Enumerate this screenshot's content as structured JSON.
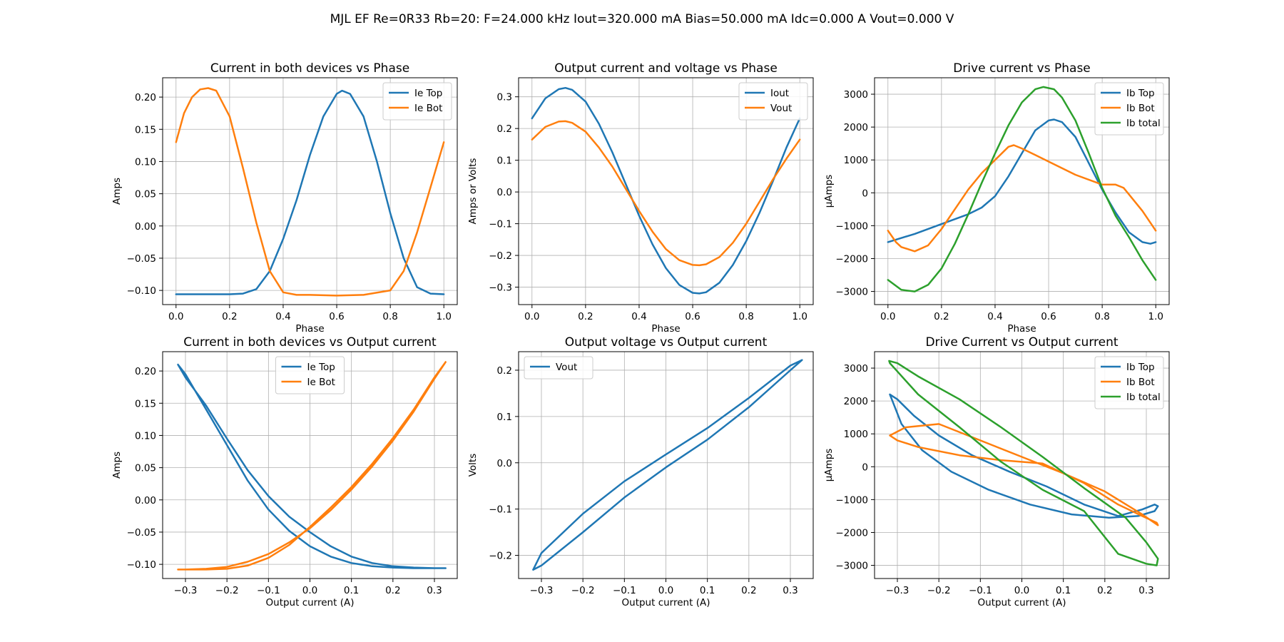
{
  "figure": {
    "suptitle": "MJL EF Re=0R33 Rb=20: F=24.000 kHz Iout=320.000 mA Bias=50.000 mA Idc=0.000 A Vout=0.000 V"
  },
  "colors": {
    "c0": "#1f77b4",
    "c1": "#ff7f0e",
    "c2": "#2ca02c",
    "grid": "#b0b0b0"
  },
  "chart_data": [
    {
      "type": "line",
      "title": "Current in both devices vs Phase",
      "xlabel": "Phase",
      "ylabel": "Amps",
      "xlim": [
        -0.05,
        1.05
      ],
      "ylim": [
        -0.122,
        0.23
      ],
      "xticks": [
        0.0,
        0.2,
        0.4,
        0.6,
        0.8,
        1.0
      ],
      "xticklabels": [
        "0.0",
        "0.2",
        "0.4",
        "0.6",
        "0.8",
        "1.0"
      ],
      "yticks": [
        -0.1,
        -0.05,
        0.0,
        0.05,
        0.1,
        0.15,
        0.2
      ],
      "yticklabels": [
        "−0.10",
        "−0.05",
        "0.00",
        "0.05",
        "0.10",
        "0.15",
        "0.20"
      ],
      "grid": true,
      "legend": "upper right",
      "series": [
        {
          "name": "Ie Top",
          "color": "#1f77b4",
          "x": [
            0.0,
            0.1,
            0.2,
            0.25,
            0.3,
            0.35,
            0.4,
            0.45,
            0.5,
            0.55,
            0.6,
            0.62,
            0.65,
            0.7,
            0.75,
            0.8,
            0.85,
            0.9,
            0.95,
            1.0
          ],
          "y": [
            -0.106,
            -0.106,
            -0.106,
            -0.105,
            -0.098,
            -0.07,
            -0.02,
            0.04,
            0.11,
            0.17,
            0.205,
            0.21,
            0.205,
            0.17,
            0.1,
            0.02,
            -0.05,
            -0.095,
            -0.105,
            -0.106
          ]
        },
        {
          "name": "Ie Bot",
          "color": "#ff7f0e",
          "x": [
            0.0,
            0.03,
            0.06,
            0.09,
            0.12,
            0.15,
            0.2,
            0.25,
            0.3,
            0.35,
            0.4,
            0.45,
            0.5,
            0.6,
            0.7,
            0.8,
            0.85,
            0.9,
            0.95,
            1.0
          ],
          "y": [
            0.13,
            0.175,
            0.2,
            0.212,
            0.214,
            0.21,
            0.17,
            0.09,
            0.005,
            -0.07,
            -0.103,
            -0.107,
            -0.107,
            -0.108,
            -0.107,
            -0.1,
            -0.07,
            -0.01,
            0.06,
            0.13
          ]
        }
      ]
    },
    {
      "type": "line",
      "title": "Output current and voltage vs Phase",
      "xlabel": "Phase",
      "ylabel": "Amps or Volts",
      "xlim": [
        -0.05,
        1.05
      ],
      "ylim": [
        -0.355,
        0.36
      ],
      "xticks": [
        0.0,
        0.2,
        0.4,
        0.6,
        0.8,
        1.0
      ],
      "xticklabels": [
        "0.0",
        "0.2",
        "0.4",
        "0.6",
        "0.8",
        "1.0"
      ],
      "yticks": [
        -0.3,
        -0.2,
        -0.1,
        0.0,
        0.1,
        0.2,
        0.3
      ],
      "yticklabels": [
        "−0.3",
        "−0.2",
        "−0.1",
        "0.0",
        "0.1",
        "0.2",
        "0.3"
      ],
      "grid": true,
      "legend": "upper right",
      "series": [
        {
          "name": "Iout",
          "color": "#1f77b4",
          "x": [
            0.0,
            0.05,
            0.1,
            0.125,
            0.15,
            0.2,
            0.25,
            0.3,
            0.35,
            0.4,
            0.45,
            0.5,
            0.55,
            0.6,
            0.625,
            0.65,
            0.7,
            0.75,
            0.8,
            0.85,
            0.9,
            0.95,
            1.0
          ],
          "y": [
            0.232,
            0.295,
            0.324,
            0.328,
            0.322,
            0.285,
            0.215,
            0.125,
            0.025,
            -0.075,
            -0.165,
            -0.24,
            -0.293,
            -0.318,
            -0.32,
            -0.316,
            -0.286,
            -0.23,
            -0.155,
            -0.065,
            0.035,
            0.14,
            0.232
          ]
        },
        {
          "name": "Vout",
          "color": "#ff7f0e",
          "x": [
            0.0,
            0.05,
            0.1,
            0.125,
            0.15,
            0.2,
            0.25,
            0.3,
            0.35,
            0.4,
            0.45,
            0.5,
            0.55,
            0.6,
            0.625,
            0.65,
            0.7,
            0.75,
            0.8,
            0.85,
            0.9,
            0.95,
            1.0
          ],
          "y": [
            0.165,
            0.205,
            0.222,
            0.223,
            0.218,
            0.19,
            0.14,
            0.08,
            0.01,
            -0.06,
            -0.125,
            -0.18,
            -0.215,
            -0.23,
            -0.231,
            -0.228,
            -0.205,
            -0.16,
            -0.1,
            -0.03,
            0.04,
            0.105,
            0.165
          ]
        }
      ]
    },
    {
      "type": "line",
      "title": "Drive current vs Phase",
      "xlabel": "Phase",
      "ylabel": "µAmps",
      "xlim": [
        -0.05,
        1.05
      ],
      "ylim": [
        -3400,
        3500
      ],
      "xticks": [
        0.0,
        0.2,
        0.4,
        0.6,
        0.8,
        1.0
      ],
      "xticklabels": [
        "0.0",
        "0.2",
        "0.4",
        "0.6",
        "0.8",
        "1.0"
      ],
      "yticks": [
        -3000,
        -2000,
        -1000,
        0,
        1000,
        2000,
        3000
      ],
      "yticklabels": [
        "−3000",
        "−2000",
        "−1000",
        "0",
        "1000",
        "2000",
        "3000"
      ],
      "grid": true,
      "legend": "upper right",
      "series": [
        {
          "name": "Ib Top",
          "color": "#1f77b4",
          "x": [
            0.0,
            0.1,
            0.2,
            0.3,
            0.35,
            0.4,
            0.45,
            0.5,
            0.55,
            0.6,
            0.62,
            0.65,
            0.7,
            0.75,
            0.8,
            0.85,
            0.9,
            0.95,
            0.98,
            1.0
          ],
          "y": [
            -1500,
            -1250,
            -950,
            -650,
            -450,
            -100,
            500,
            1200,
            1900,
            2200,
            2230,
            2150,
            1700,
            900,
            100,
            -600,
            -1200,
            -1500,
            -1550,
            -1500
          ]
        },
        {
          "name": "Ib Bot",
          "color": "#ff7f0e",
          "x": [
            0.0,
            0.03,
            0.05,
            0.1,
            0.15,
            0.2,
            0.25,
            0.3,
            0.35,
            0.4,
            0.45,
            0.47,
            0.5,
            0.55,
            0.6,
            0.7,
            0.8,
            0.85,
            0.88,
            0.9,
            0.95,
            1.0
          ],
          "y": [
            -1150,
            -1500,
            -1650,
            -1780,
            -1600,
            -1100,
            -500,
            100,
            600,
            1000,
            1400,
            1450,
            1350,
            1150,
            950,
            550,
            250,
            250,
            150,
            -50,
            -550,
            -1150
          ]
        },
        {
          "name": "Ib total",
          "color": "#2ca02c",
          "x": [
            0.0,
            0.05,
            0.1,
            0.15,
            0.2,
            0.25,
            0.3,
            0.35,
            0.4,
            0.45,
            0.5,
            0.55,
            0.58,
            0.62,
            0.65,
            0.7,
            0.75,
            0.8,
            0.85,
            0.9,
            0.95,
            1.0
          ],
          "y": [
            -2650,
            -2950,
            -3000,
            -2800,
            -2300,
            -1550,
            -650,
            300,
            1200,
            2050,
            2750,
            3150,
            3220,
            3150,
            2900,
            2200,
            1200,
            150,
            -700,
            -1350,
            -2050,
            -2650
          ]
        }
      ]
    },
    {
      "type": "line",
      "title": "Current in both devices vs Output current",
      "xlabel": "Output current (A)",
      "ylabel": "Amps",
      "xlim": [
        -0.355,
        0.355
      ],
      "ylim": [
        -0.122,
        0.23
      ],
      "xticks": [
        -0.3,
        -0.2,
        -0.1,
        0.0,
        0.1,
        0.2,
        0.3
      ],
      "xticklabels": [
        "−0.3",
        "−0.2",
        "−0.1",
        "0.0",
        "0.1",
        "0.2",
        "0.3"
      ],
      "yticks": [
        -0.1,
        -0.05,
        0.0,
        0.05,
        0.1,
        0.15,
        0.2
      ],
      "yticklabels": [
        "−0.10",
        "−0.05",
        "0.00",
        "0.05",
        "0.10",
        "0.15",
        "0.20"
      ],
      "grid": true,
      "legend": "upper center",
      "series": [
        {
          "name": "Ie Top",
          "color": "#1f77b4",
          "x": [
            -0.318,
            -0.3,
            -0.25,
            -0.2,
            -0.15,
            -0.1,
            -0.05,
            0.0,
            0.05,
            0.1,
            0.15,
            0.2,
            0.25,
            0.3,
            0.327,
            0.3,
            0.25,
            0.2,
            0.15,
            0.1,
            0.05,
            0.0,
            -0.05,
            -0.1,
            -0.15,
            -0.2,
            -0.25,
            -0.3,
            -0.318
          ],
          "y": [
            0.21,
            0.195,
            0.14,
            0.085,
            0.03,
            -0.015,
            -0.048,
            -0.072,
            -0.088,
            -0.098,
            -0.103,
            -0.105,
            -0.106,
            -0.106,
            -0.106,
            -0.106,
            -0.105,
            -0.103,
            -0.098,
            -0.088,
            -0.072,
            -0.05,
            -0.026,
            0.006,
            0.046,
            0.095,
            0.146,
            0.19,
            0.21
          ]
        },
        {
          "name": "Ie Bot",
          "color": "#ff7f0e",
          "x": [
            0.327,
            0.3,
            0.25,
            0.2,
            0.15,
            0.1,
            0.05,
            0.0,
            -0.05,
            -0.1,
            -0.15,
            -0.2,
            -0.25,
            -0.3,
            -0.318,
            -0.3,
            -0.25,
            -0.2,
            -0.15,
            -0.1,
            -0.05,
            0.0,
            0.05,
            0.1,
            0.15,
            0.2,
            0.25,
            0.3,
            0.327
          ],
          "y": [
            0.214,
            0.19,
            0.14,
            0.096,
            0.056,
            0.02,
            -0.012,
            -0.042,
            -0.07,
            -0.09,
            -0.102,
            -0.107,
            -0.108,
            -0.108,
            -0.108,
            -0.108,
            -0.107,
            -0.104,
            -0.096,
            -0.084,
            -0.066,
            -0.044,
            -0.016,
            0.016,
            0.052,
            0.092,
            0.137,
            0.188,
            0.214
          ]
        }
      ]
    },
    {
      "type": "line",
      "title": "Output voltage vs Output current",
      "xlabel": "Output current (A)",
      "ylabel": "Volts",
      "xlim": [
        -0.355,
        0.355
      ],
      "ylim": [
        -0.25,
        0.24
      ],
      "xticks": [
        -0.3,
        -0.2,
        -0.1,
        0.0,
        0.1,
        0.2,
        0.3
      ],
      "xticklabels": [
        "−0.3",
        "−0.2",
        "−0.1",
        "0.0",
        "0.1",
        "0.2",
        "0.3"
      ],
      "yticks": [
        -0.2,
        -0.1,
        0.0,
        0.1,
        0.2
      ],
      "yticklabels": [
        "−0.2",
        "−0.1",
        "0.0",
        "0.1",
        "0.2"
      ],
      "grid": true,
      "legend": "upper left",
      "series": [
        {
          "name": "Vout",
          "color": "#1f77b4",
          "x": [
            -0.32,
            -0.3,
            -0.2,
            -0.1,
            0.0,
            0.1,
            0.2,
            0.3,
            0.328,
            0.3,
            0.2,
            0.1,
            0.0,
            -0.1,
            -0.2,
            -0.3,
            -0.32
          ],
          "y": [
            -0.231,
            -0.222,
            -0.15,
            -0.075,
            -0.01,
            0.05,
            0.12,
            0.2,
            0.222,
            0.21,
            0.14,
            0.075,
            0.018,
            -0.04,
            -0.11,
            -0.195,
            -0.231
          ]
        }
      ]
    },
    {
      "type": "line",
      "title": "Drive Current vs Output current",
      "xlabel": "Output current (A)",
      "ylabel": "µAmps",
      "xlim": [
        -0.355,
        0.355
      ],
      "ylim": [
        -3400,
        3500
      ],
      "xticks": [
        -0.3,
        -0.2,
        -0.1,
        0.0,
        0.1,
        0.2,
        0.3
      ],
      "xticklabels": [
        "−0.3",
        "−0.2",
        "−0.1",
        "0.0",
        "0.1",
        "0.2",
        "0.3"
      ],
      "yticks": [
        -3000,
        -2000,
        -1000,
        0,
        1000,
        2000,
        3000
      ],
      "yticklabels": [
        "−3000",
        "−2000",
        "−1000",
        "0",
        "1000",
        "2000",
        "3000"
      ],
      "grid": true,
      "legend": "upper right",
      "series": [
        {
          "name": "Ib Top",
          "color": "#1f77b4",
          "x": [
            0.232,
            0.29,
            0.32,
            0.328,
            0.32,
            0.28,
            0.21,
            0.12,
            0.02,
            -0.08,
            -0.17,
            -0.24,
            -0.29,
            -0.318,
            -0.3,
            -0.26,
            -0.2,
            -0.12,
            -0.03,
            0.06,
            0.15,
            0.232
          ],
          "y": [
            -1500,
            -1300,
            -1150,
            -1200,
            -1350,
            -1500,
            -1550,
            -1450,
            -1150,
            -700,
            -150,
            500,
            1300,
            2200,
            2050,
            1550,
            950,
            350,
            -150,
            -600,
            -1150,
            -1500
          ]
        },
        {
          "name": "Ib Bot",
          "color": "#ff7f0e",
          "x": [
            0.232,
            0.29,
            0.325,
            0.328,
            0.29,
            0.2,
            0.1,
            0.0,
            -0.1,
            -0.2,
            -0.28,
            -0.318,
            -0.3,
            -0.25,
            -0.15,
            -0.05,
            0.05,
            0.15,
            0.232
          ],
          "y": [
            -1150,
            -1500,
            -1700,
            -1780,
            -1450,
            -750,
            -200,
            300,
            800,
            1300,
            1200,
            950,
            800,
            600,
            350,
            200,
            100,
            -500,
            -1150
          ]
        },
        {
          "name": "Ib total",
          "color": "#2ca02c",
          "x": [
            0.232,
            0.3,
            0.325,
            0.328,
            0.3,
            0.25,
            0.15,
            0.05,
            -0.05,
            -0.15,
            -0.25,
            -0.3,
            -0.32,
            -0.318,
            -0.3,
            -0.25,
            -0.15,
            -0.05,
            0.05,
            0.15,
            0.232
          ],
          "y": [
            -2650,
            -2950,
            -3000,
            -2800,
            -2300,
            -1550,
            -650,
            300,
            1200,
            2050,
            2750,
            3150,
            3220,
            3150,
            2900,
            2200,
            1200,
            150,
            -700,
            -1350,
            -2650
          ]
        }
      ]
    }
  ]
}
